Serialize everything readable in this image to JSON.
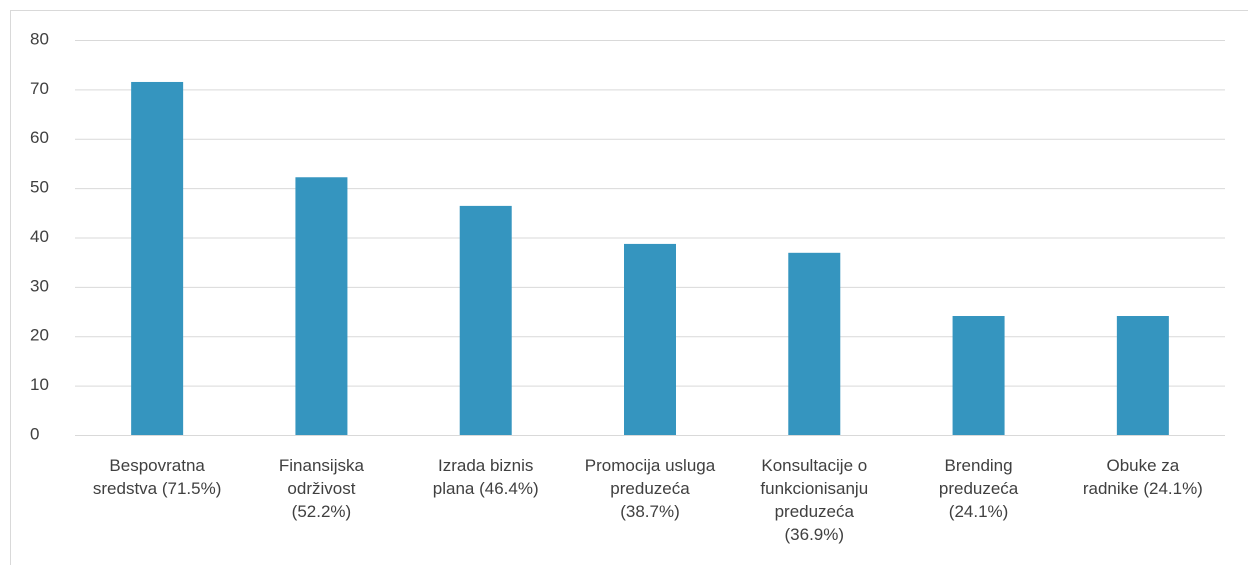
{
  "chart_data": {
    "type": "bar",
    "categories": [
      [
        "Bespovratna",
        "sredstva (71.5%)"
      ],
      [
        "Finansijska",
        "održivost",
        "(52.2%)"
      ],
      [
        "Izrada biznis",
        "plana (46.4%)"
      ],
      [
        "Promocija usluga",
        "preduzeća",
        "(38.7%)"
      ],
      [
        "Konsultacije o",
        "funkcionisanju",
        "preduzeća",
        "(36.9%)"
      ],
      [
        "Brending",
        "preduzeća",
        "(24.1%)"
      ],
      [
        "Obuke za",
        "radnike (24.1%)"
      ]
    ],
    "values": [
      71.5,
      52.2,
      46.4,
      38.7,
      36.9,
      24.1,
      24.1
    ],
    "color": "#3595bf",
    "ylim": [
      0,
      80
    ],
    "yticks": [
      0,
      10,
      20,
      30,
      40,
      50,
      60,
      70,
      80
    ],
    "grid": true
  }
}
